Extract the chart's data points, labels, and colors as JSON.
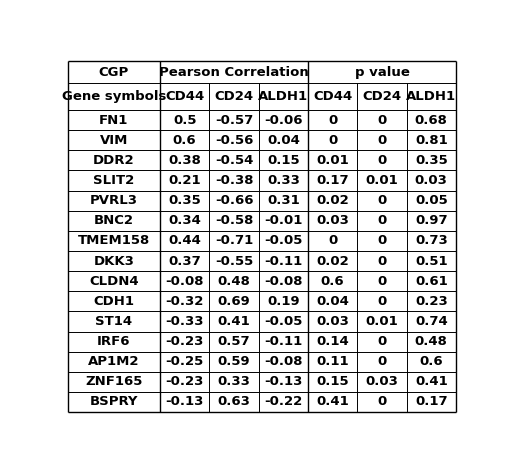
{
  "header_row1": [
    "CGP",
    "Pearson Correlation",
    "p value"
  ],
  "header_row2": [
    "Gene symbols",
    "CD44",
    "CD24",
    "ALDH1",
    "CD44",
    "CD24",
    "ALDH1"
  ],
  "rows": [
    [
      "FN1",
      "0.5",
      "-0.57",
      "-0.06",
      "0",
      "0",
      "0.68"
    ],
    [
      "VIM",
      "0.6",
      "-0.56",
      "0.04",
      "0",
      "0",
      "0.81"
    ],
    [
      "DDR2",
      "0.38",
      "-0.54",
      "0.15",
      "0.01",
      "0",
      "0.35"
    ],
    [
      "SLIT2",
      "0.21",
      "-0.38",
      "0.33",
      "0.17",
      "0.01",
      "0.03"
    ],
    [
      "PVRL3",
      "0.35",
      "-0.66",
      "0.31",
      "0.02",
      "0",
      "0.05"
    ],
    [
      "BNC2",
      "0.34",
      "-0.58",
      "-0.01",
      "0.03",
      "0",
      "0.97"
    ],
    [
      "TMEM158",
      "0.44",
      "-0.71",
      "-0.05",
      "0",
      "0",
      "0.73"
    ],
    [
      "DKK3",
      "0.37",
      "-0.55",
      "-0.11",
      "0.02",
      "0",
      "0.51"
    ],
    [
      "CLDN4",
      "-0.08",
      "0.48",
      "-0.08",
      "0.6",
      "0",
      "0.61"
    ],
    [
      "CDH1",
      "-0.32",
      "0.69",
      "0.19",
      "0.04",
      "0",
      "0.23"
    ],
    [
      "ST14",
      "-0.33",
      "0.41",
      "-0.05",
      "0.03",
      "0.01",
      "0.74"
    ],
    [
      "IRF6",
      "-0.23",
      "0.57",
      "-0.11",
      "0.14",
      "0",
      "0.48"
    ],
    [
      "AP1M2",
      "-0.25",
      "0.59",
      "-0.08",
      "0.11",
      "0",
      "0.6"
    ],
    [
      "ZNF165",
      "-0.23",
      "0.33",
      "-0.13",
      "0.15",
      "0.03",
      "0.41"
    ],
    [
      "BSPRY",
      "-0.13",
      "0.63",
      "-0.22",
      "0.41",
      "0",
      "0.17"
    ]
  ],
  "background_color": "#ffffff",
  "line_color": "#000000",
  "text_color": "#000000",
  "font_size": 9.5,
  "bold": true,
  "figwidth": 5.11,
  "figheight": 4.65,
  "dpi": 100
}
